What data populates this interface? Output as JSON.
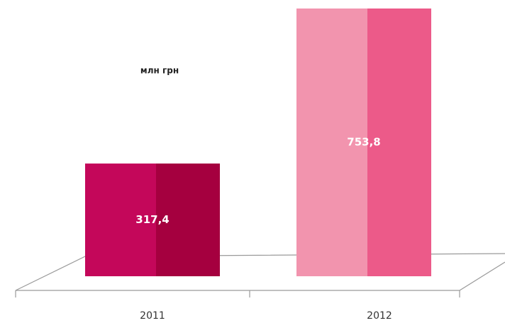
{
  "chart_data": {
    "type": "bar3d",
    "subtitle": "млн грн",
    "categories": [
      "2011",
      "2012"
    ],
    "values": [
      317.4,
      753.8
    ],
    "value_labels": [
      "317,4",
      "753,8"
    ],
    "colors": [
      "#c4075a",
      "#f294ae"
    ],
    "side_colors": [
      "#a5003f",
      "#ec5a89"
    ]
  }
}
